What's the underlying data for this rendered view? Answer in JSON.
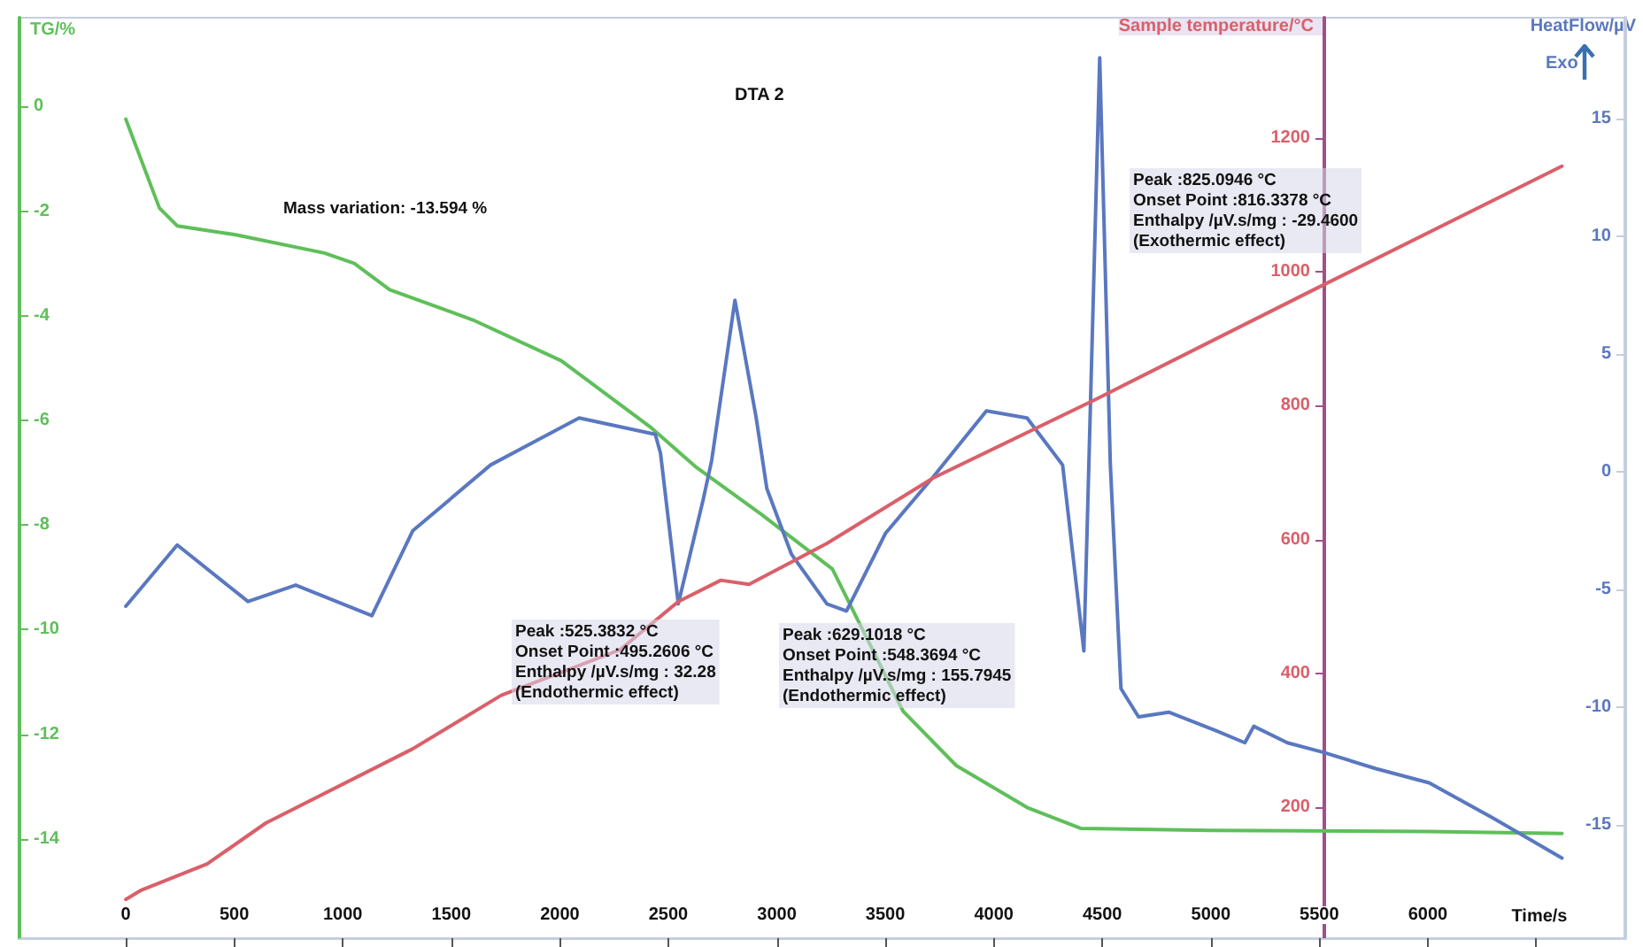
{
  "chart_data": {
    "type": "line",
    "title": "DTA 2",
    "xlabel": "Time/s",
    "ylabel": "TG/%",
    "y2label": "HeatFlow/µV",
    "y3label": "Sample temperature/°C",
    "marker": "none",
    "xlim": [
      -490,
      6910
    ],
    "xticks": [
      0,
      500,
      1000,
      1500,
      2000,
      2500,
      3000,
      3500,
      4000,
      4500,
      5000,
      5500,
      6000,
      {
        "value": 6500,
        "label": null
      }
    ],
    "ylim": [
      -15.9,
      1.7
    ],
    "yticks": [
      0,
      -2,
      -4,
      -6,
      -8,
      -10,
      -12,
      -14
    ],
    "y2lim": [
      -19.8,
      19.3
    ],
    "y2ticks": [
      15,
      10,
      5,
      0,
      -5,
      -10,
      -15
    ],
    "y3lim": [
      4,
      1380
    ],
    "y3ticks": [
      200,
      400,
      600,
      800,
      1000,
      1200
    ],
    "series": [
      {
        "color": "#5fbf5a",
        "x": [
          0,
          155,
          237,
          506,
          915,
          1053,
          1216,
          1600,
          2007,
          2415,
          2630,
          2930,
          3256,
          3419,
          3582,
          3827,
          4153,
          4400,
          5000,
          6000,
          6618
        ],
        "values": [
          -0.24,
          -1.94,
          -2.28,
          -2.45,
          -2.8,
          -3.0,
          -3.5,
          -4.08,
          -4.86,
          -6.12,
          -6.9,
          -7.8,
          -8.84,
          -10.2,
          -11.56,
          -12.6,
          -13.4,
          -13.8,
          -13.84,
          -13.86,
          -13.9
        ]
      },
      {
        "color": "#5a78c0",
        "axis": "y2",
        "x": [
          0,
          237,
          563,
          783,
          1134,
          1322,
          1681,
          2089,
          2440,
          2464,
          2546,
          2660,
          2700,
          2807,
          2905,
          2954,
          3068,
          3231,
          3321,
          3501,
          3721,
          3966,
          4153,
          4317,
          4415,
          4488,
          4537,
          4586,
          4667,
          4806,
          5027,
          5157,
          5198,
          5353,
          5516,
          5761,
          6006,
          6300,
          6618
        ],
        "values": [
          -5.7,
          -3.1,
          -5.5,
          -4.8,
          -6.1,
          -2.5,
          0.3,
          2.3,
          1.6,
          0.8,
          -5.6,
          -1.2,
          0.5,
          7.3,
          2.3,
          -0.7,
          -3.5,
          -5.6,
          -5.9,
          -2.6,
          -0.2,
          2.6,
          2.3,
          0.3,
          -7.6,
          17.6,
          0.3,
          -9.2,
          -10.4,
          -10.2,
          -11,
          -11.5,
          -10.8,
          -11.5,
          -11.9,
          -12.6,
          -13.2,
          -14.7,
          -16.4
        ]
      },
      {
        "color": "#d9606a",
        "axis": "y3",
        "x": [
          0,
          73,
          375,
          645,
          1322,
          1730,
          2277,
          2546,
          2742,
          2872,
          3231,
          3721,
          4480,
          5484,
          6618
        ],
        "values": [
          62,
          76,
          115,
          176,
          287,
          367,
          435,
          507,
          539,
          533,
          594,
          692,
          811,
          975,
          1158
        ]
      }
    ],
    "annotations": [
      "Mass variation: -13.594 %",
      "Peak :525.3832 °C\nOnset Point :495.2606 °C\nEnthalpy /µV.s/mg : 32.28\n(Endothermic effect)",
      "Peak :629.1018 °C\nOnset Point :548.3694 °C\nEnthalpy /µV.s/mg : 155.7945\n(Endothermic effect)",
      "Peak :825.0946 °C\nOnset Point :816.3378 °C\nEnthalpy /µV.s/mg : -29.4600\n(Exothermic effect)",
      "Exo"
    ]
  }
}
